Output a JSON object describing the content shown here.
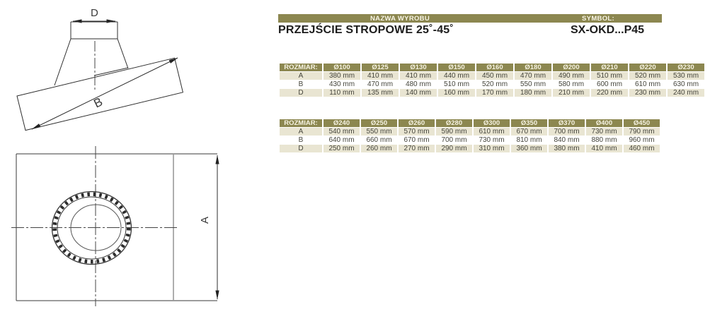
{
  "header": {
    "name_label": "NAZWA WYROBU",
    "symbol_label": "SYMBOL:",
    "product_name": "PRZEJŚCIE STROPOWE 25˚-45˚",
    "product_symbol": "SX-OKD...P45"
  },
  "colors": {
    "olive": "#8c8750",
    "beige": "#e9e5d2",
    "header_text": "#f6f3e2",
    "cell_text": "#45453c"
  },
  "tables": [
    {
      "row_header": "ROZMIAR:",
      "columns": [
        "Ø100",
        "Ø125",
        "Ø130",
        "Ø150",
        "Ø160",
        "Ø180",
        "Ø200",
        "Ø210",
        "Ø220",
        "Ø230"
      ],
      "rows": [
        {
          "label": "A",
          "values": [
            "380 mm",
            "410 mm",
            "410 mm",
            "440 mm",
            "450 mm",
            "470 mm",
            "490 mm",
            "510 mm",
            "520 mm",
            "530 mm"
          ]
        },
        {
          "label": "B",
          "values": [
            "430 mm",
            "470 mm",
            "480 mm",
            "510 mm",
            "520 mm",
            "550 mm",
            "580 mm",
            "600 mm",
            "610 mm",
            "630 mm"
          ]
        },
        {
          "label": "D",
          "values": [
            "110 mm",
            "135 mm",
            "140 mm",
            "160 mm",
            "170 mm",
            "180 mm",
            "210 mm",
            "220 mm",
            "230 mm",
            "240 mm"
          ]
        }
      ]
    },
    {
      "row_header": "ROZMIAR:",
      "columns": [
        "Ø240",
        "Ø250",
        "Ø260",
        "Ø280",
        "Ø300",
        "Ø350",
        "Ø370",
        "Ø400",
        "Ø450"
      ],
      "rows": [
        {
          "label": "A",
          "values": [
            "540 mm",
            "550 mm",
            "570 mm",
            "590 mm",
            "610 mm",
            "670 mm",
            "700 mm",
            "730 mm",
            "790 mm"
          ]
        },
        {
          "label": "B",
          "values": [
            "640 mm",
            "660 mm",
            "670 mm",
            "700 mm",
            "730 mm",
            "810 mm",
            "840 mm",
            "880 mm",
            "960 mm"
          ]
        },
        {
          "label": "D",
          "values": [
            "250 mm",
            "260 mm",
            "270 mm",
            "290 mm",
            "310 mm",
            "360 mm",
            "380 mm",
            "410 mm",
            "460 mm"
          ]
        }
      ]
    }
  ],
  "drawings": {
    "side_view": {
      "top_diameter_label": "D",
      "slant_length_label": "B"
    },
    "top_view": {
      "plate_height_label": "A"
    }
  }
}
